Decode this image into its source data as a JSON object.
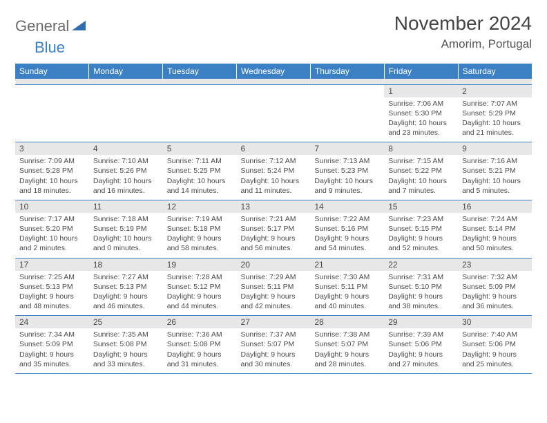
{
  "logo": {
    "text1": "General",
    "text2": "Blue",
    "icon_color": "#2f6fb0"
  },
  "header": {
    "title": "November 2024",
    "location": "Amorim, Portugal"
  },
  "colors": {
    "header_bg": "#3b7fc4",
    "header_text": "#ffffff",
    "daynum_bg": "#e7e7e7",
    "row_border": "#3b7fc4",
    "body_text": "#4a4a4a"
  },
  "weekdays": [
    "Sunday",
    "Monday",
    "Tuesday",
    "Wednesday",
    "Thursday",
    "Friday",
    "Saturday"
  ],
  "weeks": [
    [
      null,
      null,
      null,
      null,
      null,
      {
        "n": "1",
        "sr": "7:06 AM",
        "ss": "5:30 PM",
        "dl": "10 hours and 23 minutes."
      },
      {
        "n": "2",
        "sr": "7:07 AM",
        "ss": "5:29 PM",
        "dl": "10 hours and 21 minutes."
      }
    ],
    [
      {
        "n": "3",
        "sr": "7:09 AM",
        "ss": "5:28 PM",
        "dl": "10 hours and 18 minutes."
      },
      {
        "n": "4",
        "sr": "7:10 AM",
        "ss": "5:26 PM",
        "dl": "10 hours and 16 minutes."
      },
      {
        "n": "5",
        "sr": "7:11 AM",
        "ss": "5:25 PM",
        "dl": "10 hours and 14 minutes."
      },
      {
        "n": "6",
        "sr": "7:12 AM",
        "ss": "5:24 PM",
        "dl": "10 hours and 11 minutes."
      },
      {
        "n": "7",
        "sr": "7:13 AM",
        "ss": "5:23 PM",
        "dl": "10 hours and 9 minutes."
      },
      {
        "n": "8",
        "sr": "7:15 AM",
        "ss": "5:22 PM",
        "dl": "10 hours and 7 minutes."
      },
      {
        "n": "9",
        "sr": "7:16 AM",
        "ss": "5:21 PM",
        "dl": "10 hours and 5 minutes."
      }
    ],
    [
      {
        "n": "10",
        "sr": "7:17 AM",
        "ss": "5:20 PM",
        "dl": "10 hours and 2 minutes."
      },
      {
        "n": "11",
        "sr": "7:18 AM",
        "ss": "5:19 PM",
        "dl": "10 hours and 0 minutes."
      },
      {
        "n": "12",
        "sr": "7:19 AM",
        "ss": "5:18 PM",
        "dl": "9 hours and 58 minutes."
      },
      {
        "n": "13",
        "sr": "7:21 AM",
        "ss": "5:17 PM",
        "dl": "9 hours and 56 minutes."
      },
      {
        "n": "14",
        "sr": "7:22 AM",
        "ss": "5:16 PM",
        "dl": "9 hours and 54 minutes."
      },
      {
        "n": "15",
        "sr": "7:23 AM",
        "ss": "5:15 PM",
        "dl": "9 hours and 52 minutes."
      },
      {
        "n": "16",
        "sr": "7:24 AM",
        "ss": "5:14 PM",
        "dl": "9 hours and 50 minutes."
      }
    ],
    [
      {
        "n": "17",
        "sr": "7:25 AM",
        "ss": "5:13 PM",
        "dl": "9 hours and 48 minutes."
      },
      {
        "n": "18",
        "sr": "7:27 AM",
        "ss": "5:13 PM",
        "dl": "9 hours and 46 minutes."
      },
      {
        "n": "19",
        "sr": "7:28 AM",
        "ss": "5:12 PM",
        "dl": "9 hours and 44 minutes."
      },
      {
        "n": "20",
        "sr": "7:29 AM",
        "ss": "5:11 PM",
        "dl": "9 hours and 42 minutes."
      },
      {
        "n": "21",
        "sr": "7:30 AM",
        "ss": "5:11 PM",
        "dl": "9 hours and 40 minutes."
      },
      {
        "n": "22",
        "sr": "7:31 AM",
        "ss": "5:10 PM",
        "dl": "9 hours and 38 minutes."
      },
      {
        "n": "23",
        "sr": "7:32 AM",
        "ss": "5:09 PM",
        "dl": "9 hours and 36 minutes."
      }
    ],
    [
      {
        "n": "24",
        "sr": "7:34 AM",
        "ss": "5:09 PM",
        "dl": "9 hours and 35 minutes."
      },
      {
        "n": "25",
        "sr": "7:35 AM",
        "ss": "5:08 PM",
        "dl": "9 hours and 33 minutes."
      },
      {
        "n": "26",
        "sr": "7:36 AM",
        "ss": "5:08 PM",
        "dl": "9 hours and 31 minutes."
      },
      {
        "n": "27",
        "sr": "7:37 AM",
        "ss": "5:07 PM",
        "dl": "9 hours and 30 minutes."
      },
      {
        "n": "28",
        "sr": "7:38 AM",
        "ss": "5:07 PM",
        "dl": "9 hours and 28 minutes."
      },
      {
        "n": "29",
        "sr": "7:39 AM",
        "ss": "5:06 PM",
        "dl": "9 hours and 27 minutes."
      },
      {
        "n": "30",
        "sr": "7:40 AM",
        "ss": "5:06 PM",
        "dl": "9 hours and 25 minutes."
      }
    ]
  ],
  "labels": {
    "sunrise": "Sunrise:",
    "sunset": "Sunset:",
    "daylight": "Daylight:"
  }
}
